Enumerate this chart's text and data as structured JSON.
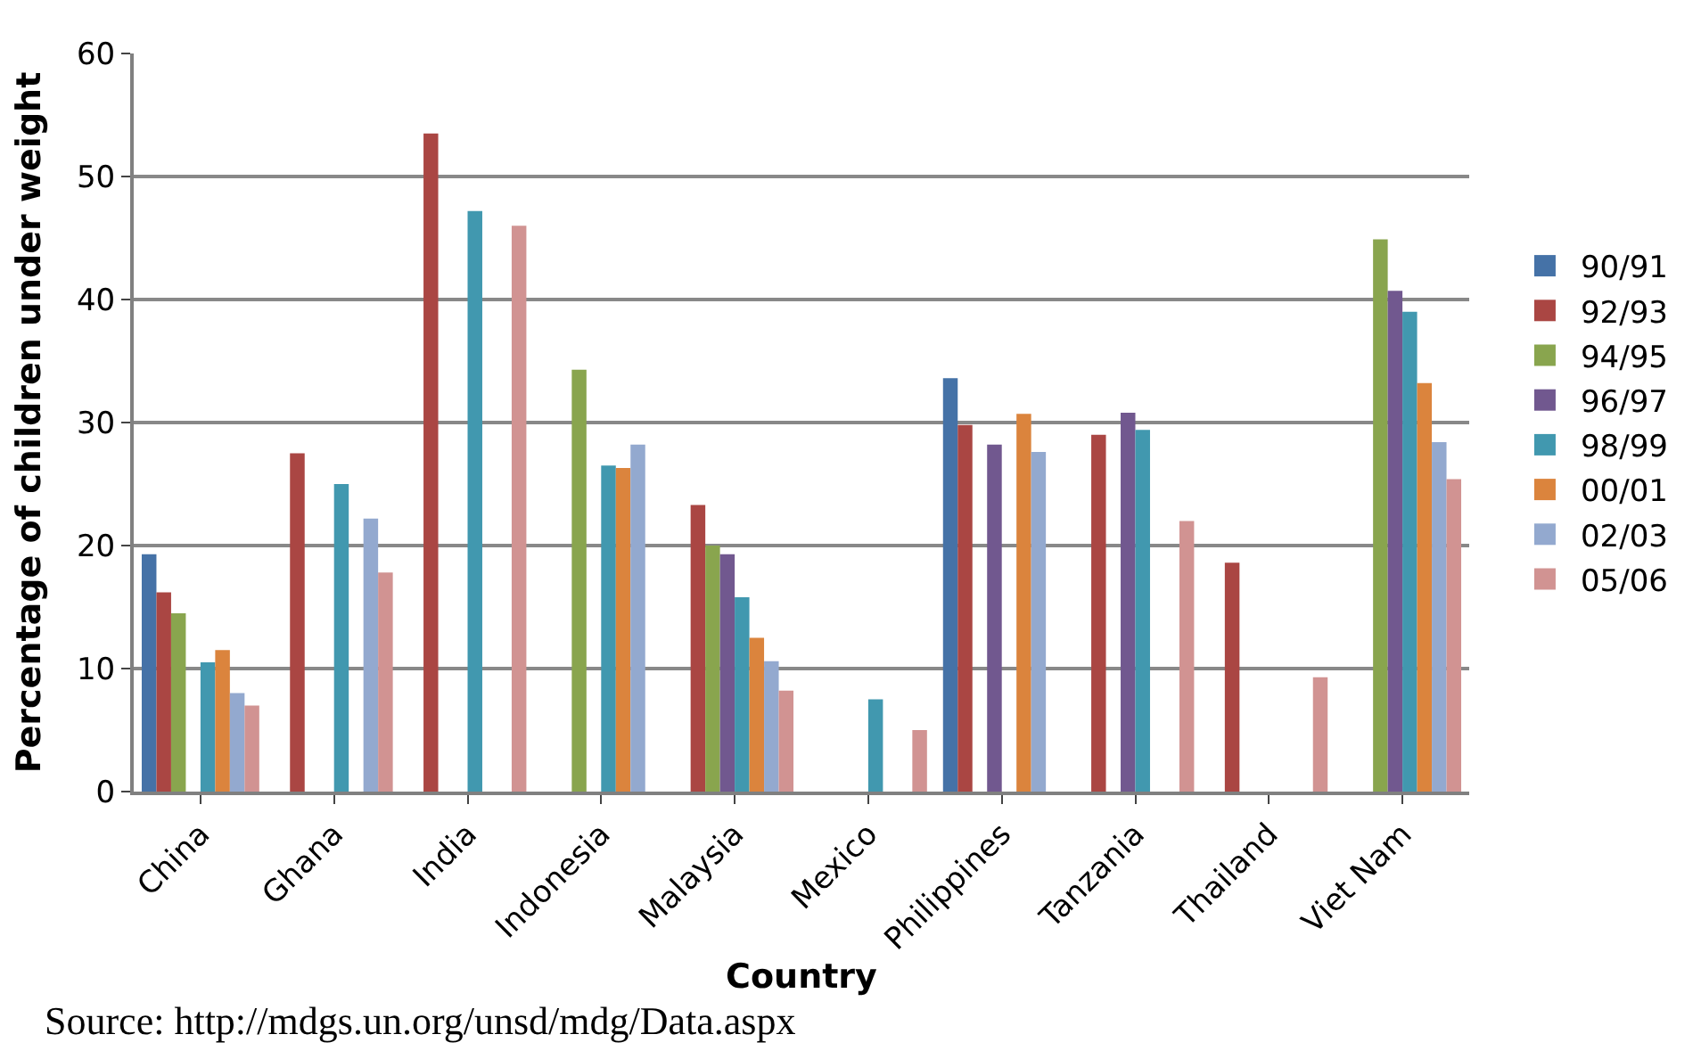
{
  "chart_data": {
    "type": "bar",
    "xlabel": "Country",
    "ylabel": "Percentage of children under weight",
    "categories": [
      "China",
      "Ghana",
      "India",
      "Indonesia",
      "Malaysia",
      "Mexico",
      "Philippines",
      "Tanzania",
      "Thailand",
      "Viet Nam"
    ],
    "series": [
      {
        "name": "90/91",
        "color": "#4572a7",
        "values": [
          19.3,
          null,
          null,
          null,
          null,
          null,
          33.6,
          null,
          null,
          null
        ]
      },
      {
        "name": "92/93",
        "color": "#aa4643",
        "values": [
          16.2,
          27.5,
          53.5,
          null,
          23.3,
          null,
          29.8,
          29,
          18.6,
          null
        ]
      },
      {
        "name": "94/95",
        "color": "#89a54e",
        "values": [
          14.5,
          null,
          null,
          34.3,
          20,
          null,
          null,
          null,
          null,
          44.9
        ]
      },
      {
        "name": "96/97",
        "color": "#71588f",
        "values": [
          null,
          null,
          null,
          null,
          19.3,
          null,
          28.2,
          30.8,
          null,
          40.7
        ]
      },
      {
        "name": "98/99",
        "color": "#4198af",
        "values": [
          10.5,
          25,
          47.2,
          26.5,
          15.8,
          7.5,
          null,
          29.4,
          null,
          39
        ]
      },
      {
        "name": "00/01",
        "color": "#db843d",
        "values": [
          11.5,
          null,
          null,
          26.3,
          12.5,
          null,
          30.7,
          null,
          null,
          33.2
        ]
      },
      {
        "name": "02/03",
        "color": "#93a9cf",
        "values": [
          8,
          22.2,
          null,
          28.2,
          10.6,
          null,
          27.6,
          null,
          null,
          28.4
        ]
      },
      {
        "name": "05/06",
        "color": "#d19392",
        "values": [
          7,
          17.8,
          46,
          null,
          8.2,
          5,
          null,
          22,
          9.3,
          25.4
        ]
      }
    ],
    "ylim": [
      0,
      60
    ],
    "yticks": [
      0,
      10,
      20,
      30,
      40,
      50,
      60
    ],
    "grid": "y",
    "legend": "right",
    "annotations": [
      "Source: http://mdgs.un.org/unsd/mdg/Data.aspx"
    ]
  }
}
